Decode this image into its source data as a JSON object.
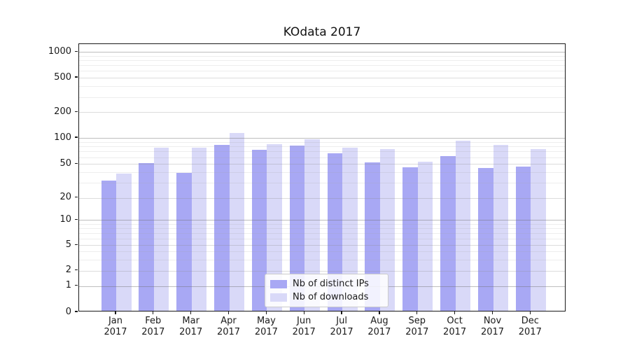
{
  "title": "KOdata 2017",
  "chart_data": {
    "type": "bar",
    "title": "KOdata 2017",
    "categories": [
      "Jan 2017",
      "Feb 2017",
      "Mar 2017",
      "Apr 2017",
      "May 2017",
      "Jun 2017",
      "Jul 2017",
      "Aug 2017",
      "Sep 2017",
      "Oct 2017",
      "Nov 2017",
      "Dec 2017"
    ],
    "month_labels": [
      "Jan",
      "Feb",
      "Mar",
      "Apr",
      "May",
      "Jun",
      "Jul",
      "Aug",
      "Sep",
      "Oct",
      "Nov",
      "Dec"
    ],
    "year_label": "2017",
    "series": [
      {
        "name": "Nb of distinct IPs",
        "color": "#a8a8f4",
        "values": [
          31,
          49,
          38,
          80,
          70,
          78,
          64,
          50,
          44,
          60,
          43,
          45
        ]
      },
      {
        "name": "Nb of downloads",
        "color": "#d9d9f8",
        "values": [
          37,
          75,
          75,
          110,
          81,
          93,
          74,
          72,
          51,
          90,
          80,
          71
        ]
      }
    ],
    "xlabel": "",
    "ylabel": "",
    "yscale": "symlog",
    "ylim": [
      0,
      1250
    ],
    "yticks": [
      0,
      1,
      2,
      5,
      10,
      20,
      50,
      100,
      200,
      500,
      1000
    ],
    "minor_gridlines": [
      3,
      4,
      6,
      7,
      8,
      9,
      30,
      40,
      60,
      70,
      80,
      90,
      300,
      400,
      600,
      700,
      800,
      900
    ],
    "grid": true,
    "legend_position": "inside-bottom-center"
  },
  "legend": {
    "items": [
      {
        "label": "Nb of distinct IPs",
        "color": "#a8a8f4"
      },
      {
        "label": "Nb of downloads",
        "color": "#d9d9f8"
      }
    ]
  },
  "colors": {
    "series_ips": "#a8a8f4",
    "series_downloads": "#d9d9f8",
    "grid_major": "#bcbcbc",
    "grid_minor": "#e6e6e6",
    "axis": "#1a1a1a",
    "background": "#ffffff"
  }
}
